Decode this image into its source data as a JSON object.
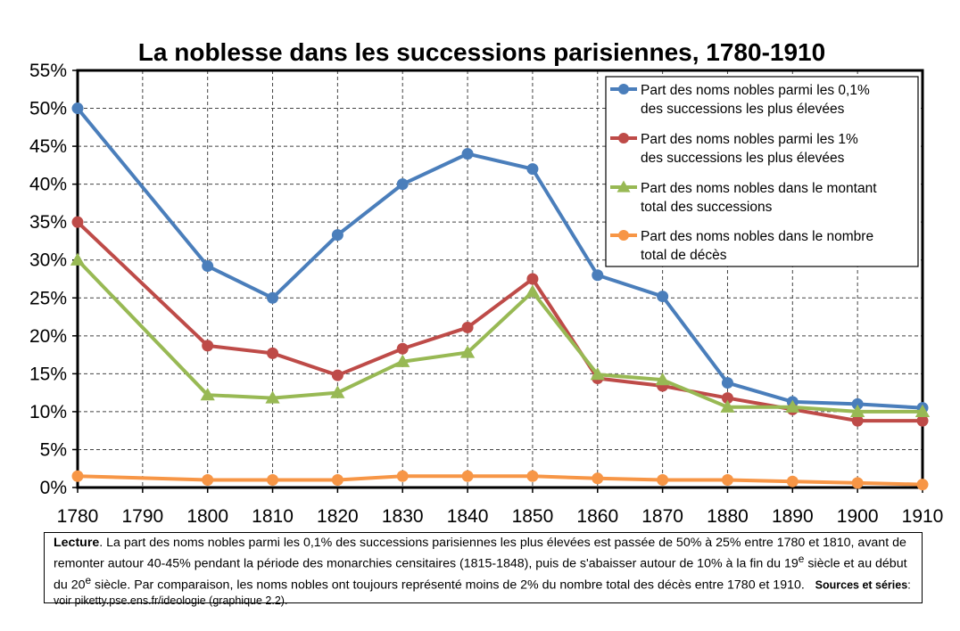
{
  "chart_data": {
    "type": "line",
    "title": "La noblesse dans les successions parisiennes, 1780-1910",
    "x": [
      1780,
      1790,
      1800,
      1810,
      1820,
      1830,
      1840,
      1850,
      1860,
      1870,
      1880,
      1890,
      1900,
      1910
    ],
    "ylim": [
      0,
      0.55
    ],
    "y_ticks": [
      "0%",
      "5%",
      "10%",
      "15%",
      "20%",
      "25%",
      "30%",
      "35%",
      "40%",
      "45%",
      "50%",
      "55%"
    ],
    "x_ticks": [
      "1780",
      "1790",
      "1800",
      "1810",
      "1820",
      "1830",
      "1840",
      "1850",
      "1860",
      "1870",
      "1880",
      "1890",
      "1900",
      "1910"
    ],
    "grid": true,
    "legend_position": "top-right",
    "series": [
      {
        "name_lines": [
          "Part des noms nobles parmi les 0,1%",
          "des successions les plus élevées"
        ],
        "color": "#4a7ebb",
        "marker": "circle",
        "x": [
          1780,
          1800,
          1810,
          1820,
          1830,
          1840,
          1850,
          1860,
          1870,
          1880,
          1890,
          1900,
          1910
        ],
        "values": [
          0.5,
          0.292,
          0.25,
          0.333,
          0.4,
          0.44,
          0.42,
          0.28,
          0.252,
          0.138,
          0.113,
          0.11,
          0.105
        ]
      },
      {
        "name_lines": [
          "Part des noms nobles parmi les 1%",
          "des successions les plus élevées"
        ],
        "color": "#be4b48",
        "marker": "circle",
        "x": [
          1780,
          1800,
          1810,
          1820,
          1830,
          1840,
          1850,
          1860,
          1870,
          1880,
          1890,
          1900,
          1910
        ],
        "values": [
          0.35,
          0.187,
          0.177,
          0.148,
          0.183,
          0.211,
          0.275,
          0.144,
          0.134,
          0.118,
          0.103,
          0.088,
          0.088
        ]
      },
      {
        "name_lines": [
          "Part des noms nobles dans le montant",
          "total des successions"
        ],
        "color": "#98b954",
        "marker": "triangle",
        "x": [
          1780,
          1800,
          1810,
          1820,
          1830,
          1840,
          1850,
          1860,
          1870,
          1880,
          1890,
          1900,
          1910
        ],
        "values": [
          0.3,
          0.122,
          0.118,
          0.125,
          0.166,
          0.178,
          0.258,
          0.149,
          0.142,
          0.106,
          0.106,
          0.1,
          0.1
        ]
      },
      {
        "name_lines": [
          "Part des noms nobles dans le nombre",
          "total de décès"
        ],
        "color": "#f79646",
        "marker": "circle",
        "x": [
          1780,
          1800,
          1810,
          1820,
          1830,
          1840,
          1850,
          1860,
          1870,
          1880,
          1890,
          1900,
          1910
        ],
        "values": [
          0.015,
          0.01,
          0.01,
          0.01,
          0.015,
          0.015,
          0.015,
          0.012,
          0.01,
          0.01,
          0.008,
          0.006,
          0.004
        ]
      }
    ]
  },
  "note": {
    "lead": "Lecture",
    "body": ". La part des noms nobles parmi les 0,1% des successions parisiennes les plus élevées est passée de 50% à 25% entre 1780 et 1810, avant de remonter autour 40-45% pendant la période des monarchies censitaires (1815-1848), puis de s'abaisser autour de 10% à la fin du 19",
    "sup1": "e",
    "body2": " siècle et au début du 20",
    "sup2": "e",
    "body3": " siècle. Par comparaison, les noms nobles ont toujours représenté moins de 2% du nombre total des décès entre 1780 et 1910.",
    "sources_label": "Sources et séries",
    "sources_text": ": voir piketty.pse.ens.fr/ideologie (graphique 2.2)."
  }
}
